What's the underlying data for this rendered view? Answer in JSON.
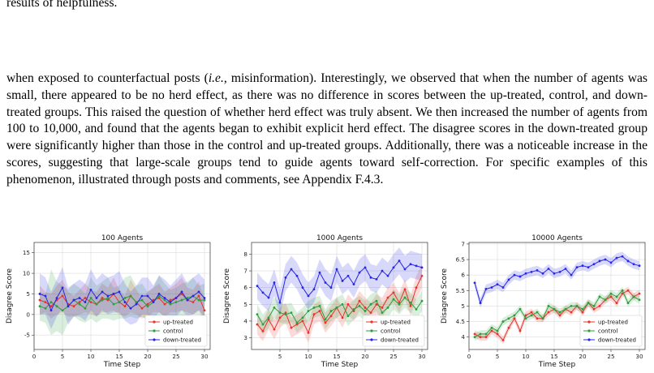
{
  "text": {
    "fragment": "results of helpfulness.",
    "p1": "when exposed to counterfactual posts (",
    "p1_italic": "i.e.",
    "p2": ", misinformation). Interestingly, we observed that when the number of agents was small, there appeared to be no herd effect, as there was no difference in scores between the up-treated, control, and down-treated groups. This raised the question of whether herd effect was truly absent. We then increased the number of agents from 100 to 10,000, and found that the agents began to exhibit explicit herd effect. The disagree scores in the down-treated group were significantly higher than those in the control and up-treated groups. Additionally, there was a noticeable increase in the scores, suggesting that large-scale groups tend to guide agents toward self-correction. For specific examples of this phenomenon, illustrated through posts and comments, see Appendix F.4.3."
  },
  "chart_data": [
    {
      "type": "line",
      "title": "100 Agents",
      "xlabel": "Time Step",
      "ylabel": "Disagree Score",
      "xlim": [
        0,
        31
      ],
      "ylim": [
        -8.5,
        17.5
      ],
      "xticks": [
        0,
        5,
        10,
        15,
        20,
        25,
        30
      ],
      "yticks": [
        -5,
        0,
        5,
        10,
        15
      ],
      "grid": true,
      "legend_position": "lower right",
      "x": [
        1,
        2,
        3,
        4,
        5,
        6,
        7,
        8,
        9,
        10,
        11,
        12,
        13,
        14,
        15,
        16,
        17,
        18,
        19,
        20,
        21,
        22,
        23,
        24,
        25,
        26,
        27,
        28,
        29,
        30
      ],
      "series": [
        {
          "name": "up-treated",
          "color": "#e8332a",
          "values": [
            3.5,
            3.0,
            2.0,
            3.5,
            4.5,
            2.5,
            2.0,
            3.0,
            4.0,
            3.0,
            2.5,
            4.0,
            3.5,
            5.0,
            3.0,
            2.0,
            4.5,
            3.0,
            1.5,
            2.5,
            3.5,
            4.0,
            2.5,
            3.5,
            4.0,
            5.0,
            3.5,
            3.0,
            4.5,
            1.0
          ],
          "band": [
            3.5,
            2.5,
            3.0,
            3.5,
            4.0,
            3.0,
            2.5,
            3.0,
            3.5,
            3.0,
            3.0,
            3.5,
            3.0,
            4.0,
            3.0,
            2.5,
            4.0,
            3.0,
            2.5,
            3.0,
            3.0,
            3.5,
            3.0,
            3.0,
            3.5,
            4.0,
            3.0,
            3.0,
            3.5,
            2.5
          ]
        },
        {
          "name": "control",
          "color": "#2e9e3c",
          "values": [
            2.0,
            1.5,
            3.0,
            2.0,
            1.0,
            2.0,
            3.5,
            2.5,
            1.5,
            4.0,
            2.5,
            3.5,
            4.0,
            2.5,
            3.0,
            4.0,
            4.5,
            3.0,
            3.5,
            2.0,
            3.0,
            4.5,
            3.5,
            2.5,
            3.0,
            3.5,
            4.0,
            4.5,
            3.5,
            3.5
          ],
          "band": [
            3.5,
            3.5,
            8.0,
            6.0,
            6.0,
            4.0,
            4.0,
            4.0,
            3.5,
            5.0,
            4.5,
            4.5,
            5.0,
            4.0,
            4.0,
            5.0,
            5.0,
            4.0,
            4.0,
            3.5,
            3.5,
            5.0,
            4.0,
            3.5,
            3.5,
            4.0,
            4.0,
            4.5,
            3.5,
            4.0
          ]
        },
        {
          "name": "down-treated",
          "color": "#2626e8",
          "values": [
            5.0,
            4.5,
            1.0,
            4.0,
            6.5,
            2.0,
            3.5,
            4.0,
            3.0,
            6.0,
            4.0,
            5.5,
            4.5,
            5.0,
            5.5,
            3.0,
            1.5,
            2.5,
            4.5,
            4.5,
            3.0,
            5.0,
            4.0,
            3.0,
            4.0,
            5.5,
            3.5,
            4.5,
            5.5,
            4.0
          ],
          "band": [
            5.0,
            4.5,
            4.5,
            4.5,
            5.0,
            4.5,
            4.0,
            4.5,
            4.5,
            5.0,
            4.5,
            4.5,
            4.5,
            4.5,
            5.0,
            4.5,
            4.0,
            4.5,
            4.5,
            4.5,
            4.0,
            4.5,
            4.5,
            4.0,
            4.5,
            4.5,
            4.0,
            4.5,
            4.5,
            4.5
          ]
        }
      ]
    },
    {
      "type": "line",
      "title": "1000 Agents",
      "xlabel": "Time Step",
      "ylabel": "Disagree Score",
      "xlim": [
        0,
        31
      ],
      "ylim": [
        2.3,
        8.7
      ],
      "xticks": [
        5,
        10,
        15,
        20,
        25,
        30
      ],
      "yticks": [
        3,
        4,
        5,
        6,
        7,
        8
      ],
      "grid": true,
      "legend_position": "lower right",
      "x": [
        1,
        2,
        3,
        4,
        5,
        6,
        7,
        8,
        9,
        10,
        11,
        12,
        13,
        14,
        15,
        16,
        17,
        18,
        19,
        20,
        21,
        22,
        23,
        24,
        25,
        26,
        27,
        28,
        29,
        30
      ],
      "series": [
        {
          "name": "up-treated",
          "color": "#e8332a",
          "values": [
            3.8,
            3.4,
            4.1,
            3.5,
            4.2,
            4.5,
            3.6,
            3.8,
            4.0,
            3.3,
            4.4,
            4.6,
            3.9,
            4.3,
            4.8,
            4.2,
            5.0,
            4.6,
            5.2,
            4.8,
            4.5,
            5.0,
            4.8,
            5.4,
            5.7,
            5.1,
            5.9,
            4.9,
            6.0,
            6.7
          ],
          "band": [
            0.6,
            0.6,
            0.6,
            0.6,
            0.6,
            0.6,
            0.6,
            0.6,
            0.6,
            0.6,
            0.6,
            0.6,
            0.6,
            0.6,
            0.6,
            0.6,
            0.6,
            0.6,
            0.6,
            0.6,
            0.6,
            0.6,
            0.6,
            0.6,
            0.6,
            0.6,
            0.6,
            0.6,
            0.7,
            0.7
          ]
        },
        {
          "name": "control",
          "color": "#2e9e3c",
          "values": [
            4.4,
            3.8,
            4.2,
            4.8,
            4.5,
            4.4,
            4.5,
            3.9,
            4.2,
            4.6,
            4.8,
            4.9,
            4.1,
            4.6,
            4.8,
            5.0,
            4.3,
            4.7,
            4.9,
            4.6,
            5.0,
            5.2,
            4.5,
            4.8,
            5.3,
            5.0,
            5.4,
            5.1,
            4.7,
            5.2
          ],
          "band": [
            0.6,
            0.6,
            0.6,
            0.6,
            0.6,
            0.6,
            0.6,
            0.6,
            0.6,
            0.6,
            0.6,
            0.6,
            0.6,
            0.6,
            0.6,
            0.6,
            0.6,
            0.6,
            0.6,
            0.6,
            0.6,
            0.6,
            0.6,
            0.6,
            0.6,
            0.6,
            0.6,
            0.6,
            0.6,
            0.6
          ]
        },
        {
          "name": "down-treated",
          "color": "#2626e8",
          "values": [
            6.1,
            5.7,
            5.4,
            6.3,
            5.1,
            6.6,
            7.1,
            6.7,
            6.0,
            5.5,
            5.9,
            6.9,
            6.3,
            6.0,
            7.1,
            6.4,
            6.7,
            6.2,
            6.9,
            7.2,
            6.6,
            6.5,
            7.0,
            6.7,
            7.2,
            7.6,
            7.1,
            7.4,
            7.3,
            7.2
          ],
          "band": [
            0.8,
            0.8,
            0.8,
            0.8,
            0.8,
            0.8,
            0.8,
            0.8,
            0.8,
            0.8,
            0.8,
            0.8,
            0.8,
            0.8,
            0.8,
            0.8,
            0.8,
            0.8,
            0.8,
            0.8,
            0.8,
            0.8,
            0.8,
            0.8,
            0.8,
            0.8,
            0.8,
            0.8,
            0.8,
            0.8
          ]
        }
      ]
    },
    {
      "type": "line",
      "title": "10000 Agents",
      "xlabel": "Time Step",
      "ylabel": "Disagree Score",
      "xlim": [
        0,
        31
      ],
      "ylim": [
        3.6,
        7.05
      ],
      "xticks": [
        0,
        5,
        10,
        15,
        20,
        25,
        30
      ],
      "yticks": [
        4.0,
        4.5,
        5.0,
        5.5,
        6.0,
        6.5,
        7.0
      ],
      "grid": true,
      "legend_position": "lower right",
      "x": [
        1,
        2,
        3,
        4,
        5,
        6,
        7,
        8,
        9,
        10,
        11,
        12,
        13,
        14,
        15,
        16,
        17,
        18,
        19,
        20,
        21,
        22,
        23,
        24,
        25,
        26,
        27,
        28,
        29,
        30
      ],
      "series": [
        {
          "name": "up-treated",
          "color": "#e8332a",
          "values": [
            4.1,
            4.0,
            4.0,
            4.2,
            4.1,
            3.9,
            4.3,
            4.6,
            4.2,
            4.7,
            4.8,
            4.6,
            4.6,
            4.8,
            4.9,
            4.7,
            4.9,
            4.8,
            5.0,
            4.8,
            5.1,
            4.9,
            5.0,
            5.2,
            5.3,
            5.1,
            5.4,
            5.5,
            5.3,
            5.4
          ],
          "band": [
            0.12,
            0.12,
            0.12,
            0.12,
            0.12,
            0.12,
            0.12,
            0.12,
            0.12,
            0.12,
            0.12,
            0.12,
            0.12,
            0.12,
            0.12,
            0.12,
            0.12,
            0.12,
            0.12,
            0.12,
            0.12,
            0.12,
            0.12,
            0.12,
            0.12,
            0.12,
            0.12,
            0.12,
            0.12,
            0.12
          ]
        },
        {
          "name": "control",
          "color": "#2e9e3c",
          "values": [
            4.0,
            4.1,
            4.1,
            4.3,
            4.2,
            4.5,
            4.6,
            4.7,
            4.9,
            4.6,
            4.7,
            4.8,
            4.6,
            5.0,
            4.9,
            4.8,
            4.9,
            5.0,
            5.0,
            4.9,
            5.1,
            5.0,
            5.3,
            5.2,
            5.4,
            5.3,
            5.5,
            5.1,
            5.3,
            5.2
          ],
          "band": [
            0.12,
            0.12,
            0.12,
            0.12,
            0.12,
            0.12,
            0.12,
            0.12,
            0.12,
            0.12,
            0.12,
            0.12,
            0.12,
            0.12,
            0.12,
            0.12,
            0.12,
            0.12,
            0.12,
            0.12,
            0.12,
            0.12,
            0.12,
            0.12,
            0.12,
            0.12,
            0.12,
            0.12,
            0.12,
            0.12
          ]
        },
        {
          "name": "down-treated",
          "color": "#2626e8",
          "values": [
            5.75,
            5.1,
            5.55,
            5.6,
            5.7,
            5.6,
            5.85,
            6.0,
            5.95,
            6.05,
            6.1,
            6.15,
            6.05,
            6.2,
            6.05,
            6.1,
            6.2,
            6.0,
            6.25,
            6.3,
            6.25,
            6.35,
            6.45,
            6.5,
            6.4,
            6.55,
            6.6,
            6.45,
            6.35,
            6.3
          ],
          "band": [
            0.15,
            0.15,
            0.15,
            0.15,
            0.15,
            0.15,
            0.15,
            0.15,
            0.15,
            0.15,
            0.15,
            0.15,
            0.15,
            0.15,
            0.15,
            0.15,
            0.15,
            0.15,
            0.15,
            0.15,
            0.15,
            0.15,
            0.15,
            0.15,
            0.15,
            0.15,
            0.15,
            0.15,
            0.15,
            0.15
          ]
        }
      ]
    }
  ]
}
